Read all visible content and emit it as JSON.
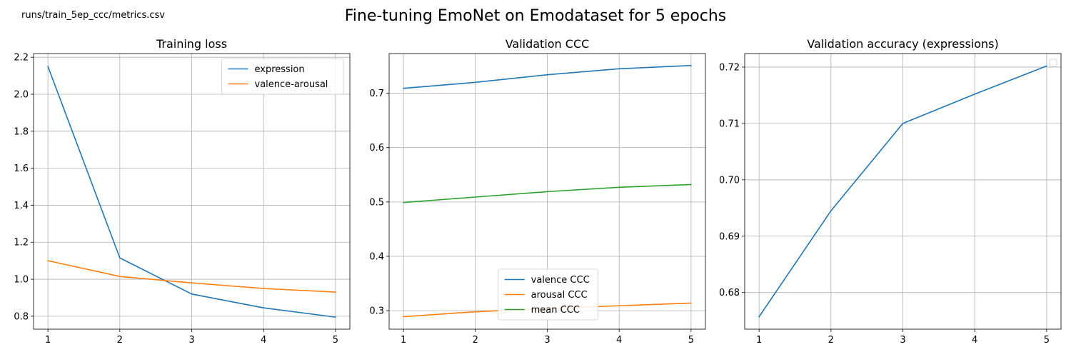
{
  "figure": {
    "suptitle": "Fine-tuning EmoNet on Emodataset for 5 epochs",
    "source_text": "runs/train_5ep_ccc/metrics.csv"
  },
  "chart_data": [
    {
      "id": "loss",
      "type": "line",
      "title": "Training loss",
      "xlabel": "",
      "ylabel": "",
      "x": [
        1,
        2,
        3,
        4,
        5
      ],
      "xticks": [
        1,
        2,
        3,
        4,
        5
      ],
      "xlim": [
        0.8,
        5.2
      ],
      "ylim": [
        0.73,
        2.22
      ],
      "yticks": [
        0.8,
        1.0,
        1.2,
        1.4,
        1.6,
        1.8,
        2.0,
        2.2
      ],
      "ytick_decimals": 1,
      "grid": true,
      "legend": "upper-right",
      "series": [
        {
          "name": "expression",
          "color": "#1f77b4",
          "values": [
            2.15,
            1.115,
            0.92,
            0.845,
            0.795
          ]
        },
        {
          "name": "valence-arousal",
          "color": "#ff7f0e",
          "values": [
            1.1,
            1.015,
            0.98,
            0.95,
            0.93
          ]
        }
      ]
    },
    {
      "id": "ccc",
      "type": "line",
      "title": "Validation CCC",
      "xlabel": "",
      "ylabel": "",
      "x": [
        1,
        2,
        3,
        4,
        5
      ],
      "xticks": [
        1,
        2,
        3,
        4,
        5
      ],
      "xlim": [
        0.8,
        5.2
      ],
      "ylim": [
        0.266,
        0.773
      ],
      "yticks": [
        0.3,
        0.4,
        0.5,
        0.6,
        0.7
      ],
      "ytick_decimals": 1,
      "grid": true,
      "legend": "lower-center",
      "series": [
        {
          "name": "valence CCC",
          "color": "#1f77b4",
          "values": [
            0.709,
            0.72,
            0.734,
            0.745,
            0.751
          ]
        },
        {
          "name": "arousal CCC",
          "color": "#ff7f0e",
          "values": [
            0.289,
            0.298,
            0.304,
            0.309,
            0.314
          ]
        },
        {
          "name": "mean CCC",
          "color": "#2ca02c",
          "values": [
            0.499,
            0.509,
            0.519,
            0.527,
            0.532
          ]
        }
      ]
    },
    {
      "id": "acc",
      "type": "line",
      "title": "Validation accuracy (expressions)",
      "xlabel": "",
      "ylabel": "",
      "x": [
        1,
        2,
        3,
        4,
        5
      ],
      "xticks": [
        1,
        2,
        3,
        4,
        5
      ],
      "xlim": [
        0.8,
        5.2
      ],
      "ylim": [
        0.6735,
        0.7224
      ],
      "yticks": [
        0.68,
        0.69,
        0.7,
        0.71,
        0.72
      ],
      "ytick_decimals": 2,
      "grid": true,
      "legend": "upper-right-empty",
      "series": [
        {
          "color": "#1f77b4",
          "values": [
            0.6757,
            0.6945,
            0.71,
            0.7152,
            0.7202
          ]
        }
      ]
    }
  ]
}
